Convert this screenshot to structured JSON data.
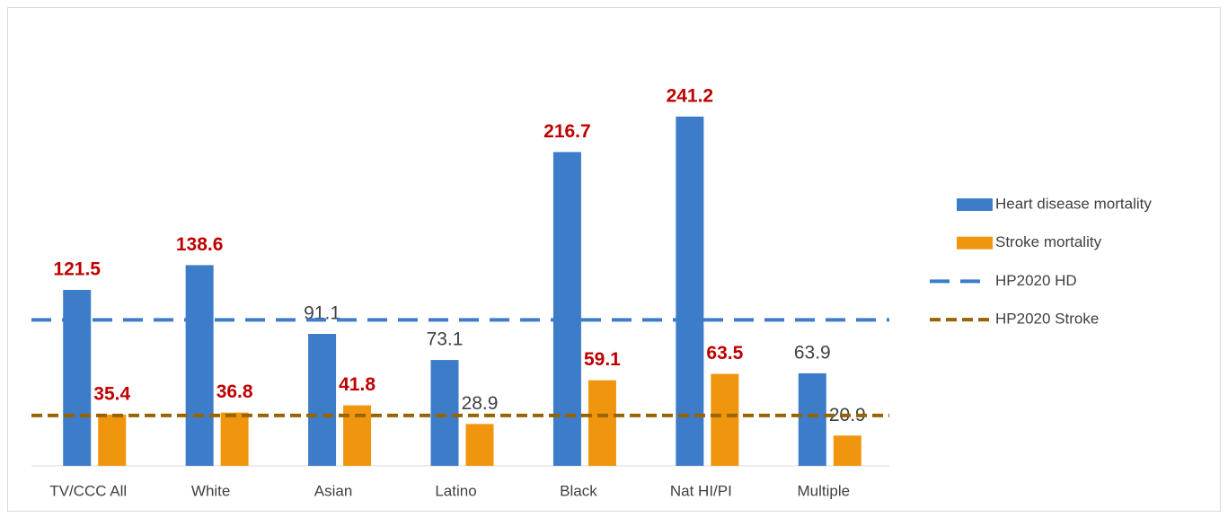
{
  "chart_data": {
    "type": "bar",
    "categories": [
      "TV/CCC All",
      "White",
      "Asian",
      "Latino",
      "Black",
      "Nat HI/PI",
      "Multiple"
    ],
    "series": [
      {
        "name": "Heart disease mortality",
        "color": "#3d7cc9",
        "values": [
          121.5,
          138.6,
          91.1,
          73.1,
          216.7,
          241.2,
          63.9
        ]
      },
      {
        "name": "Stroke mortality",
        "color": "#f0960e",
        "values": [
          35.4,
          36.8,
          41.8,
          28.9,
          59.1,
          63.5,
          20.9
        ]
      }
    ],
    "reference_lines": [
      {
        "name": "HP2020 HD",
        "value": 100.8,
        "color": "#3d7cc9"
      },
      {
        "name": "HP2020 Stroke",
        "value": 34.8,
        "color": "#996300"
      }
    ],
    "ylim": [
      0,
      300
    ],
    "legend": "right"
  }
}
